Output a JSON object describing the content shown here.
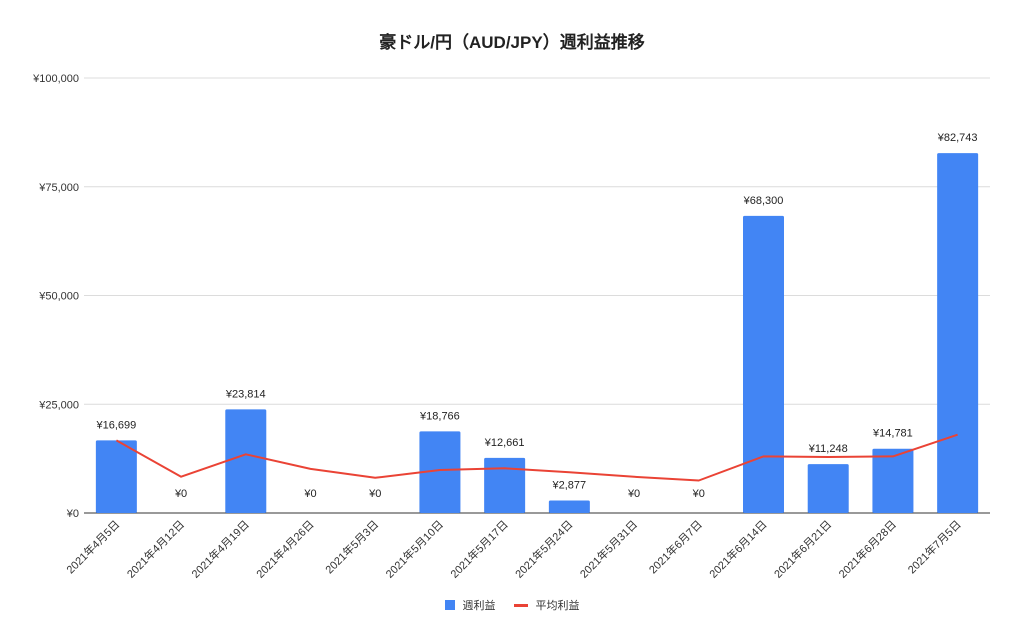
{
  "title": "豪ドル/円（AUD/JPY）週利益推移",
  "legend": {
    "bar_label": "週利益",
    "line_label": "平均利益"
  },
  "colors": {
    "bar": "#4285f4",
    "line": "#ea4335",
    "grid": "#dcdcdc",
    "axis": "#333333"
  },
  "chart_data": {
    "type": "bar",
    "title": "豪ドル/円（AUD/JPY）週利益推移",
    "xlabel": "",
    "ylabel": "",
    "ylim": [
      0,
      100000
    ],
    "yticks": [
      0,
      25000,
      50000,
      75000,
      100000
    ],
    "ytick_labels": [
      "¥0",
      "¥25,000",
      "¥50,000",
      "¥75,000",
      "¥100,000"
    ],
    "grid": true,
    "legend_position": "bottom",
    "categories": [
      "2021年4月5日",
      "2021年4月12日",
      "2021年4月19日",
      "2021年4月26日",
      "2021年5月3日",
      "2021年5月10日",
      "2021年5月17日",
      "2021年5月24日",
      "2021年5月31日",
      "2021年6月7日",
      "2021年6月14日",
      "2021年6月21日",
      "2021年6月28日",
      "2021年7月5日"
    ],
    "series": [
      {
        "name": "週利益",
        "type": "bar",
        "values": [
          16699,
          0,
          23814,
          0,
          0,
          18766,
          12661,
          2877,
          0,
          0,
          68300,
          11248,
          14781,
          82743
        ],
        "data_labels": [
          "¥16,699",
          "¥0",
          "¥23,814",
          "¥0",
          "¥0",
          "¥18,766",
          "¥12,661",
          "¥2,877",
          "¥0",
          "¥0",
          "¥68,300",
          "¥11,248",
          "¥14,781",
          "¥82,743"
        ]
      },
      {
        "name": "平均利益",
        "type": "line",
        "values": [
          16699,
          8350,
          13504,
          10128,
          8103,
          9880,
          10277,
          9352,
          8313,
          7482,
          13011,
          12864,
          13011,
          17992
        ]
      }
    ]
  }
}
